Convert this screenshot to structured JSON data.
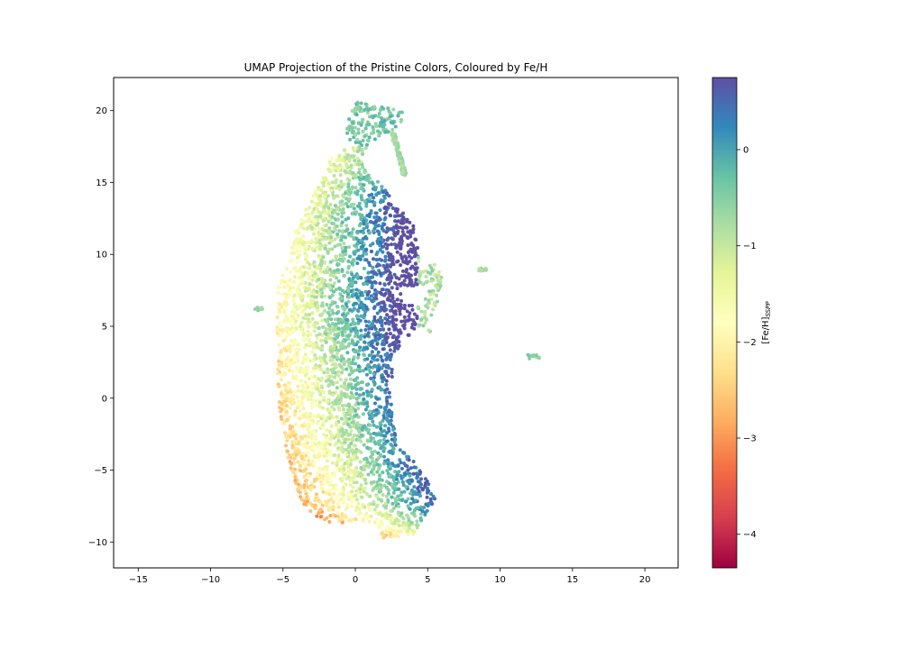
{
  "chart_data": {
    "type": "scatter",
    "title": "UMAP Projection of the Pristine Colors, Coloured by Fe/H",
    "xlabel": "",
    "ylabel": "",
    "xlim": [
      -16.7,
      22.3
    ],
    "ylim": [
      -11.8,
      22.3
    ],
    "xticks": [
      -15,
      -10,
      -5,
      0,
      5,
      10,
      15,
      20
    ],
    "yticks": [
      -10,
      -5,
      0,
      5,
      10,
      15,
      20
    ],
    "xtick_labels": [
      "−15",
      "−10",
      "−5",
      "0",
      "5",
      "10",
      "15",
      "20"
    ],
    "ytick_labels": [
      "−10",
      "−5",
      "0",
      "5",
      "10",
      "15",
      "20"
    ],
    "grid": false,
    "colormap": "Spectral",
    "colorbar": {
      "label": "[Fe/H]_SSPP",
      "label_main": "[Fe/H]",
      "label_sub": "SSPP",
      "range": [
        -4.35,
        0.75
      ],
      "ticks": [
        0,
        -1,
        -2,
        -3,
        -4
      ],
      "tick_labels": [
        "0",
        "−1",
        "−2",
        "−3",
        "−4"
      ]
    },
    "clusters": [
      {
        "name": "main-body-outline",
        "polygon": [
          [
            0,
            20.6
          ],
          [
            3.2,
            20.0
          ],
          [
            3.4,
            19.2
          ],
          [
            2.0,
            18.3
          ],
          [
            0.8,
            17.6
          ],
          [
            0.6,
            16.2
          ],
          [
            2.6,
            13.8
          ],
          [
            4.0,
            12.0
          ],
          [
            4.4,
            10.0
          ],
          [
            4.4,
            8.8
          ],
          [
            5.4,
            9.4
          ],
          [
            6.1,
            9.1
          ],
          [
            6.0,
            7.8
          ],
          [
            5.4,
            5.8
          ],
          [
            5.1,
            4.3
          ],
          [
            4.4,
            5.0
          ],
          [
            4.0,
            4.5
          ],
          [
            3.0,
            3.6
          ],
          [
            2.6,
            2.0
          ],
          [
            2.4,
            0.3
          ],
          [
            2.6,
            -1.5
          ],
          [
            3.0,
            -3.5
          ],
          [
            4.2,
            -4.5
          ],
          [
            5.0,
            -5.8
          ],
          [
            5.5,
            -7.0
          ],
          [
            4.8,
            -8.2
          ],
          [
            4.0,
            -9.5
          ],
          [
            2.0,
            -9.8
          ],
          [
            1.5,
            -8.8
          ],
          [
            0.8,
            -8.5
          ],
          [
            -0.6,
            -8.7
          ],
          [
            -2.0,
            -8.6
          ],
          [
            -3.2,
            -8.0
          ],
          [
            -4.0,
            -6.5
          ],
          [
            -4.5,
            -5.0
          ],
          [
            -5.2,
            -1.2
          ],
          [
            -5.4,
            1.5
          ],
          [
            -5.3,
            3.8
          ],
          [
            -5.5,
            5.0
          ],
          [
            -5.3,
            7.8
          ],
          [
            -4.6,
            9.6
          ],
          [
            -4.2,
            11.5
          ],
          [
            -3.3,
            13.5
          ],
          [
            -1.6,
            16.8
          ],
          [
            -0.4,
            17.6
          ],
          [
            -0.8,
            18.6
          ]
        ]
      },
      {
        "name": "isolated-clump-left",
        "x": -6.6,
        "y": 6.2,
        "r": 0.25,
        "feh": -0.6
      },
      {
        "name": "isolated-clump-mid",
        "x": 8.8,
        "y": 8.95,
        "r": 0.25,
        "feh": -0.7
      },
      {
        "name": "isolated-clump-right",
        "x": 12.3,
        "y": 2.9,
        "r": 0.35,
        "feh": -0.5
      }
    ]
  }
}
